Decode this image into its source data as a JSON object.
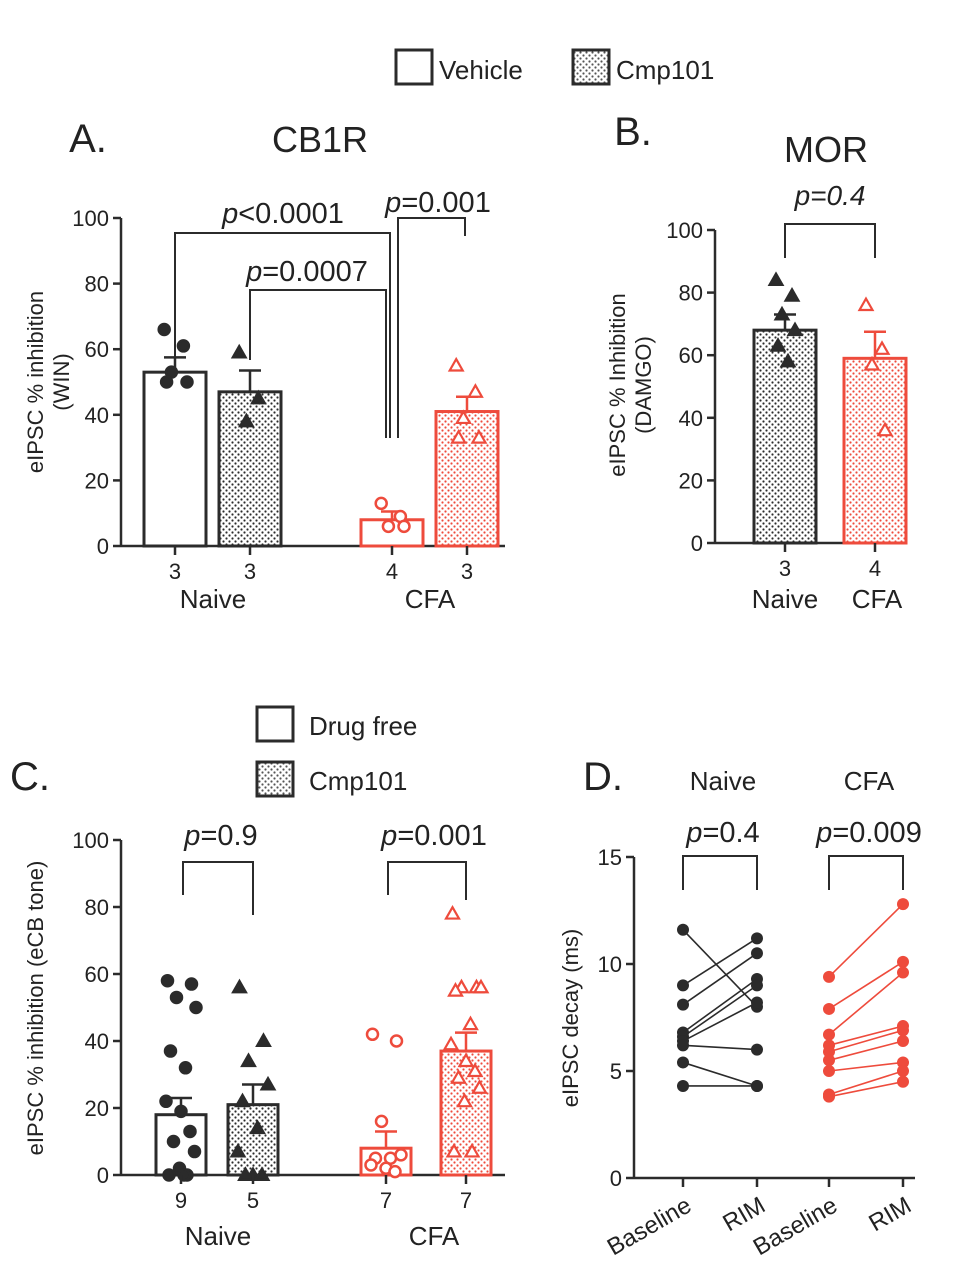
{
  "colors": {
    "black": "#2b2b2b",
    "red": "#ee4b3c"
  },
  "legend_top": {
    "vehicle": "Vehicle",
    "cmp101": "Cmp101"
  },
  "legend_c": {
    "drug_free": "Drug free",
    "cmp101": "Cmp101"
  },
  "chart_data": [
    {
      "panel": "A.",
      "type": "bar",
      "title": "CB1R",
      "ylabel": "eIPSC % inhibition\n(WIN)",
      "ylim": [
        0,
        100
      ],
      "yticks": [
        0,
        20,
        40,
        60,
        80,
        100
      ],
      "groups": [
        "Naive",
        "CFA"
      ],
      "bars": [
        {
          "group": "Naive",
          "treatment": "Vehicle",
          "n": "3",
          "mean": 53,
          "sem": 4.5,
          "points": [
            66,
            61,
            53,
            50,
            50
          ],
          "marker": "circle",
          "color": "black"
        },
        {
          "group": "Naive",
          "treatment": "Cmp101",
          "n": "3",
          "mean": 47,
          "sem": 6.5,
          "points": [
            59,
            45,
            38
          ],
          "marker": "triangle",
          "color": "black"
        },
        {
          "group": "CFA",
          "treatment": "Vehicle",
          "n": "4",
          "mean": 8,
          "sem": 2.5,
          "points": [
            13,
            9,
            6,
            6
          ],
          "marker": "circle",
          "color": "red"
        },
        {
          "group": "CFA",
          "treatment": "Cmp101",
          "n": "3",
          "mean": 41,
          "sem": 4.5,
          "points": [
            55,
            47,
            39,
            33,
            33
          ],
          "marker": "triangle",
          "color": "red"
        }
      ],
      "comparisons": [
        {
          "from": 0,
          "to": 2,
          "label": "p<0.0001",
          "italic_prefix": "p",
          "rest": "<0.0001"
        },
        {
          "from": 1,
          "to": 2,
          "label": "p=0.0007",
          "italic_prefix": "p",
          "rest": "=0.0007"
        },
        {
          "from": 2,
          "to": 3,
          "label": "p=0.001",
          "italic_prefix": "p",
          "rest": "=0.001"
        }
      ]
    },
    {
      "panel": "B.",
      "type": "bar",
      "title": "MOR",
      "ylabel": "eIPSC % Inhibition\n(DAMGO)",
      "ylim": [
        0,
        100
      ],
      "yticks": [
        0,
        20,
        40,
        60,
        80,
        100
      ],
      "bars": [
        {
          "group": "Naive",
          "treatment": "Cmp101",
          "n": "3",
          "mean": 68,
          "sem": 5,
          "points": [
            84,
            79,
            73,
            68,
            63,
            58
          ],
          "marker": "triangle",
          "color": "black"
        },
        {
          "group": "CFA",
          "treatment": "Cmp101",
          "n": "4",
          "mean": 59,
          "sem": 8.5,
          "points": [
            76,
            62,
            57,
            36
          ],
          "marker": "triangle",
          "color": "red"
        }
      ],
      "comparisons": [
        {
          "from": 0,
          "to": 1,
          "label": "p=0.4",
          "italic_prefix": "p",
          "rest": "=0.4",
          "all_italic": true
        }
      ]
    },
    {
      "panel": "C.",
      "type": "bar",
      "ylabel": "eIPSC % inhibition (eCB tone)",
      "ylim": [
        0,
        100
      ],
      "yticks": [
        0,
        20,
        40,
        60,
        80,
        100
      ],
      "groups": [
        "Naive",
        "CFA"
      ],
      "bars": [
        {
          "group": "Naive",
          "treatment": "Drug free",
          "n": "9",
          "mean": 18,
          "sem": 5,
          "points": [
            58,
            57,
            53,
            50,
            37,
            32,
            22,
            19,
            13,
            10,
            7,
            2,
            0,
            0,
            0
          ],
          "marker": "circle",
          "color": "black"
        },
        {
          "group": "Naive",
          "treatment": "Cmp101",
          "n": "5",
          "mean": 21,
          "sem": 6,
          "points": [
            56,
            40,
            34,
            27,
            22,
            14,
            7,
            0,
            0,
            0
          ],
          "marker": "triangle",
          "color": "black"
        },
        {
          "group": "CFA",
          "treatment": "Drug free",
          "n": "7",
          "mean": 8,
          "sem": 5,
          "points": [
            42,
            40,
            16,
            6,
            5,
            5,
            3,
            2,
            1
          ],
          "marker": "circle",
          "color": "red"
        },
        {
          "group": "CFA",
          "treatment": "Cmp101",
          "n": "7",
          "mean": 37,
          "sem": 5.5,
          "points": [
            78,
            56,
            56,
            56,
            55,
            45,
            39,
            34,
            31,
            29,
            26,
            22,
            7,
            7
          ],
          "marker": "triangle",
          "color": "red"
        }
      ],
      "comparisons": [
        {
          "from": 0,
          "to": 1,
          "label": "p=0.9",
          "italic_prefix": "p",
          "rest": "=0.9"
        },
        {
          "from": 2,
          "to": 3,
          "label": "p=0.001",
          "italic_prefix": "p",
          "rest": "=0.001"
        }
      ]
    },
    {
      "panel": "D.",
      "type": "line",
      "ylabel": "eIPSC decay (ms)",
      "ylim": [
        0,
        15
      ],
      "yticks": [
        0,
        5,
        10,
        15
      ],
      "xticks": [
        "Baseline",
        "RIM",
        "Baseline",
        "RIM"
      ],
      "groups": [
        {
          "name": "Naive",
          "color": "black",
          "pairs": [
            [
              11.6,
              8.0
            ],
            [
              9.0,
              11.2
            ],
            [
              8.1,
              10.5
            ],
            [
              6.8,
              9.3
            ],
            [
              6.6,
              9.0
            ],
            [
              6.4,
              8.2
            ],
            [
              6.2,
              6.0
            ],
            [
              5.4,
              4.3
            ],
            [
              4.3,
              4.3
            ]
          ]
        },
        {
          "name": "CFA",
          "color": "red",
          "pairs": [
            [
              9.4,
              12.8
            ],
            [
              7.9,
              10.1
            ],
            [
              6.7,
              9.6
            ],
            [
              6.2,
              7.1
            ],
            [
              5.9,
              6.9
            ],
            [
              5.5,
              6.4
            ],
            [
              5.0,
              5.4
            ],
            [
              3.9,
              5.0
            ],
            [
              3.8,
              4.5
            ]
          ]
        }
      ],
      "comparisons": [
        {
          "group": "Naive",
          "label": "p=0.4",
          "italic_prefix": "p",
          "rest": "=0.4"
        },
        {
          "group": "CFA",
          "label": "p=0.009",
          "italic_prefix": "p",
          "rest": "=0.009"
        }
      ]
    }
  ]
}
